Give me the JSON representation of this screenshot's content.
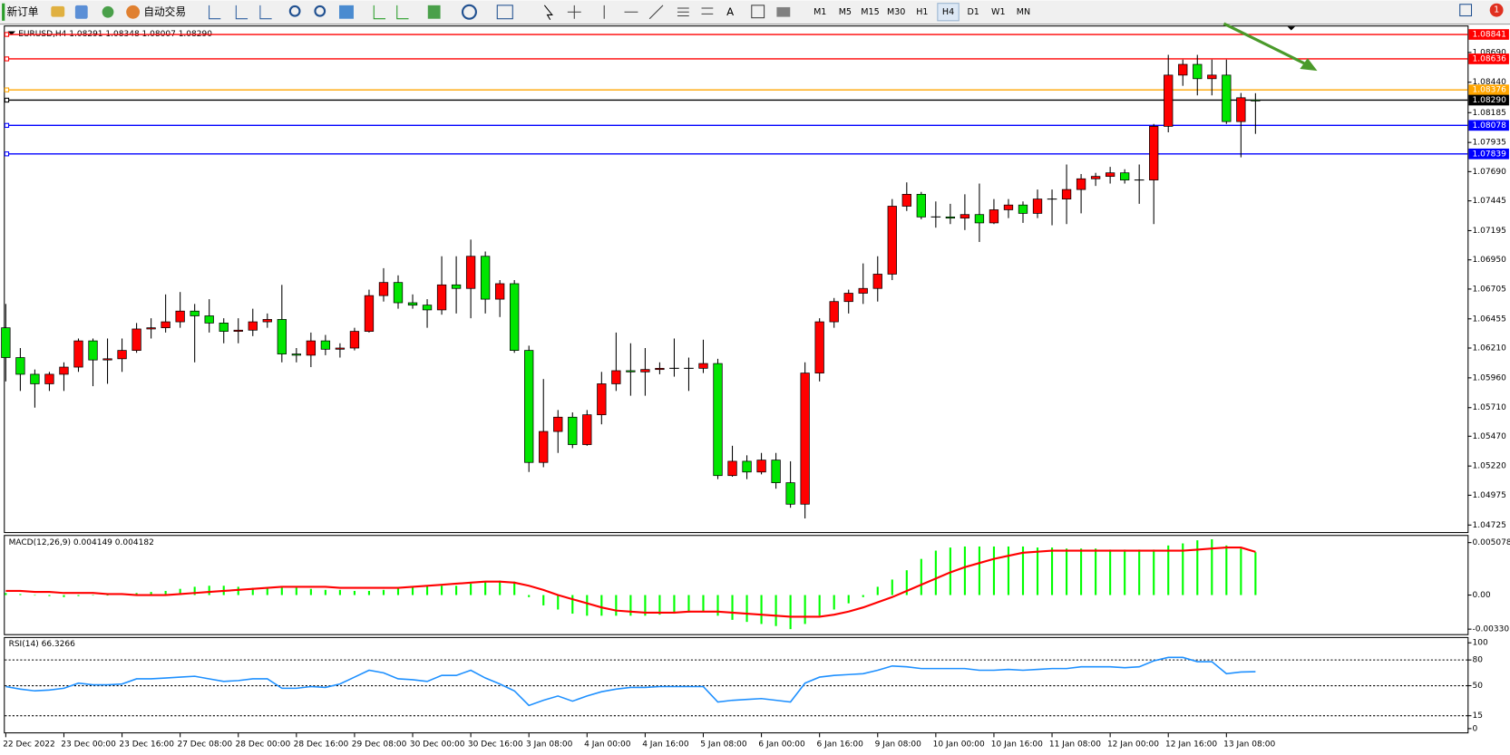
{
  "toolbar": {
    "new_order": "新订单",
    "auto_trading": "自动交易",
    "timeframes": [
      "M1",
      "M5",
      "M15",
      "M30",
      "H1",
      "H4",
      "D1",
      "W1",
      "MN"
    ],
    "notification_count": "1"
  },
  "chart": {
    "header": "EURUSD,H4  1.08291 1.08348 1.08007 1.08290",
    "ylim": [
      1.04666,
      1.08908
    ],
    "yticks": [
      {
        "value": 1.0869,
        "label": "1.08690"
      },
      {
        "value": 1.0844,
        "label": "1.08440"
      },
      1.08185,
      {
        "value": 1.07935,
        "label": "1.07935"
      },
      {
        "value": 1.0769,
        "label": "1.07690"
      },
      1.07445,
      1.07195,
      {
        "value": 1.0695,
        "label": "1.06950"
      },
      1.06705,
      1.06455,
      {
        "value": 1.0621,
        "label": "1.06210"
      },
      {
        "value": 1.0596,
        "label": "1.05960"
      },
      {
        "value": 1.0571,
        "label": "1.05710"
      },
      {
        "value": 1.0547,
        "label": "1.05470"
      },
      {
        "value": 1.0522,
        "label": "1.05220"
      },
      1.04975,
      1.04725
    ],
    "levels": [
      {
        "value": 1.08841,
        "label": "1.08841",
        "color": "#ff0000"
      },
      {
        "value": 1.08636,
        "label": "1.08636",
        "color": "#ff0000"
      },
      {
        "value": 1.08376,
        "label": "1.08376",
        "color": "#ffa500"
      },
      {
        "value": 1.0829,
        "label": "1.08290",
        "color": "#000000"
      },
      {
        "value": 1.08078,
        "label": "1.08078",
        "color": "#0000ff"
      },
      {
        "value": 1.07839,
        "label": "1.07839",
        "color": "#0000ff"
      }
    ],
    "up_color": "#ff0000",
    "down_color": "#00e600",
    "time_labels": [
      "22 Dec 2022",
      "23 Dec 00:00",
      "23 Dec 16:00",
      "27 Dec 08:00",
      "28 Dec 00:00",
      "28 Dec 16:00",
      "29 Dec 08:00",
      "30 Dec 00:00",
      "30 Dec 16:00",
      "3 Jan 08:00",
      "4 Jan 00:00",
      "4 Jan 16:00",
      "5 Jan 08:00",
      "6 Jan 00:00",
      "6 Jan 16:00",
      "9 Jan 08:00",
      "10 Jan 00:00",
      "10 Jan 16:00",
      "11 Jan 08:00",
      "12 Jan 00:00",
      "12 Jan 16:00",
      "13 Jan 08:00"
    ],
    "candles": {
      "open": [
        1.0638,
        1.0613,
        1.0599,
        1.0591,
        1.0599,
        1.0605,
        1.0627,
        1.0611,
        1.0612,
        1.0619,
        1.0637,
        1.0638,
        1.0643,
        1.0652,
        1.0648,
        1.0642,
        1.0635,
        1.0636,
        1.0643,
        1.0645,
        1.0616,
        1.0615,
        1.0627,
        1.062,
        1.0621,
        1.0635,
        1.0665,
        1.0676,
        1.0659,
        1.0657,
        1.0653,
        1.0674,
        1.0671,
        1.0698,
        1.0662,
        1.0675,
        1.0619,
        1.0525,
        1.0551,
        1.0563,
        1.054,
        1.0565,
        1.0591,
        1.0602,
        1.0601,
        1.0603,
        1.0604,
        1.0604,
        1.0604,
        1.0608,
        1.0514,
        1.0526,
        1.0517,
        1.0527,
        1.0508,
        1.049,
        1.06,
        1.0643,
        1.066,
        1.0667,
        1.0671,
        1.0683,
        1.074,
        1.075,
        1.0731,
        1.0731,
        1.073,
        1.0733,
        1.0726,
        1.0737,
        1.0741,
        1.0734,
        1.0746,
        1.0746,
        1.0754,
        1.0763,
        1.0765,
        1.0768,
        1.0762,
        1.0762,
        1.0807,
        1.085,
        1.0859,
        1.0847,
        1.085,
        1.0811,
        1.08291
      ],
      "high": [
        1.0658,
        1.0621,
        1.0603,
        1.0601,
        1.0609,
        1.0629,
        1.0629,
        1.0629,
        1.0629,
        1.0642,
        1.0646,
        1.0666,
        1.0668,
        1.0658,
        1.0662,
        1.0646,
        1.0646,
        1.0654,
        1.065,
        1.0674,
        1.0621,
        1.0634,
        1.0632,
        1.0625,
        1.0638,
        1.067,
        1.0688,
        1.0682,
        1.0666,
        1.0662,
        1.0698,
        1.0698,
        1.0712,
        1.0702,
        1.0678,
        1.0678,
        1.0623,
        1.0595,
        1.0569,
        1.0567,
        1.0569,
        1.0601,
        1.0634,
        1.0625,
        1.0621,
        1.0609,
        1.0629,
        1.0613,
        1.0628,
        1.0612,
        1.0539,
        1.0531,
        1.0533,
        1.0533,
        1.0526,
        1.0609,
        1.0646,
        1.0663,
        1.067,
        1.0692,
        1.0698,
        1.0746,
        1.076,
        1.0752,
        1.0744,
        1.0742,
        1.075,
        1.0759,
        1.0746,
        1.0746,
        1.0744,
        1.0754,
        1.0754,
        1.0775,
        1.0767,
        1.0768,
        1.0773,
        1.0771,
        1.0775,
        1.0809,
        1.0867,
        1.0863,
        1.0867,
        1.0863,
        1.0863,
        1.0835,
        1.08348
      ],
      "low": [
        1.0593,
        1.0585,
        1.0571,
        1.0585,
        1.0585,
        1.0601,
        1.0589,
        1.0591,
        1.0601,
        1.0617,
        1.0629,
        1.0634,
        1.0638,
        1.0609,
        1.0634,
        1.0625,
        1.0625,
        1.0631,
        1.0638,
        1.0609,
        1.0609,
        1.0605,
        1.0615,
        1.0613,
        1.0619,
        1.0634,
        1.066,
        1.0654,
        1.0654,
        1.0638,
        1.0649,
        1.065,
        1.0646,
        1.065,
        1.0647,
        1.0617,
        1.0517,
        1.0521,
        1.0533,
        1.0537,
        1.0539,
        1.0557,
        1.0585,
        1.0581,
        1.0581,
        1.0599,
        1.0597,
        1.0585,
        1.06,
        1.0511,
        1.0513,
        1.0511,
        1.0515,
        1.0503,
        1.0487,
        1.0478,
        1.0593,
        1.0638,
        1.065,
        1.0658,
        1.066,
        1.0678,
        1.0736,
        1.0729,
        1.0722,
        1.0725,
        1.072,
        1.071,
        1.0725,
        1.073,
        1.0726,
        1.073,
        1.0724,
        1.0725,
        1.0734,
        1.0757,
        1.0759,
        1.0759,
        1.0742,
        1.0725,
        1.0802,
        1.0841,
        1.0833,
        1.0833,
        1.0809,
        1.0781,
        1.08007
      ],
      "close": [
        1.0613,
        1.0599,
        1.0591,
        1.0599,
        1.0605,
        1.0627,
        1.0611,
        1.0612,
        1.0619,
        1.0637,
        1.0638,
        1.0643,
        1.0652,
        1.0648,
        1.0642,
        1.0635,
        1.0636,
        1.0643,
        1.0645,
        1.0616,
        1.0615,
        1.0627,
        1.062,
        1.0621,
        1.0635,
        1.0665,
        1.0676,
        1.0659,
        1.0657,
        1.0653,
        1.0674,
        1.0671,
        1.0698,
        1.0662,
        1.0675,
        1.0619,
        1.0525,
        1.0551,
        1.0563,
        1.054,
        1.0565,
        1.0591,
        1.0602,
        1.0601,
        1.0603,
        1.0604,
        1.0604,
        1.0604,
        1.0608,
        1.0514,
        1.0526,
        1.0517,
        1.0527,
        1.0508,
        1.049,
        1.06,
        1.0643,
        1.066,
        1.0667,
        1.0671,
        1.0683,
        1.074,
        1.075,
        1.0731,
        1.0731,
        1.073,
        1.0733,
        1.0726,
        1.0737,
        1.0741,
        1.0734,
        1.0746,
        1.0746,
        1.0754,
        1.0763,
        1.0765,
        1.0768,
        1.0762,
        1.0762,
        1.0807,
        1.085,
        1.0859,
        1.0847,
        1.085,
        1.0811,
        1.0831,
        1.0829
      ]
    }
  },
  "macd": {
    "label": "MACD(12,26,9) 0.004149 0.004182",
    "ylim": [
      -0.003785,
      0.005724
    ],
    "yticks": [
      0.005078,
      {
        "value": 0,
        "label": "0.00"
      },
      -0.003301
    ],
    "histogram_color": "#00ff00",
    "signal_color": "#ff0000",
    "histogram": [
      0.0002,
      0.0001,
      0,
      -0.0001,
      -0.0002,
      -0.0001,
      0,
      0,
      0.0001,
      0.0002,
      0.0003,
      0.0004,
      0.0006,
      0.0008,
      0.0009,
      0.0009,
      0.0008,
      0.0007,
      0.0007,
      0.0007,
      0.0007,
      0.0006,
      0.0005,
      0.0005,
      0.0004,
      0.0004,
      0.0005,
      0.0007,
      0.0008,
      0.0009,
      0.0009,
      0.0009,
      0.0011,
      0.0013,
      0.0014,
      0.0013,
      -0.0002,
      -0.001,
      -0.0014,
      -0.0018,
      -0.002,
      -0.002,
      -0.002,
      -0.002,
      -0.002,
      -0.0019,
      -0.0018,
      -0.0017,
      -0.0016,
      -0.002,
      -0.0024,
      -0.0026,
      -0.0028,
      -0.003,
      -0.0033,
      -0.0028,
      -0.002,
      -0.0014,
      -0.0008,
      -0.0002,
      0.0008,
      0.0015,
      0.0024,
      0.0035,
      0.0043,
      0.0046,
      0.0047,
      0.0047,
      0.0047,
      0.0047,
      0.0047,
      0.0046,
      0.0046,
      0.0045,
      0.0045,
      0.0045,
      0.0044,
      0.0044,
      0.0044,
      0.0044,
      0.0048,
      0.005,
      0.0053,
      0.0054,
      0.0048,
      0.0045,
      0.004149
    ],
    "signal": [
      0.0004,
      0.0004,
      0.0003,
      0.0003,
      0.0002,
      0.0002,
      0.0002,
      0.0001,
      0.0001,
      0,
      0,
      0,
      0.0001,
      0.0002,
      0.0003,
      0.0004,
      0.0005,
      0.0006,
      0.0007,
      0.0008,
      0.0008,
      0.0008,
      0.0008,
      0.0007,
      0.0007,
      0.0007,
      0.0007,
      0.0007,
      0.0008,
      0.0009,
      0.001,
      0.0011,
      0.0012,
      0.0013,
      0.0013,
      0.0012,
      0.0009,
      0.0005,
      0,
      -0.0004,
      -0.0008,
      -0.0012,
      -0.0015,
      -0.0016,
      -0.0017,
      -0.0017,
      -0.0017,
      -0.0016,
      -0.0016,
      -0.0016,
      -0.0017,
      -0.0018,
      -0.0019,
      -0.002,
      -0.0021,
      -0.0021,
      -0.0021,
      -0.0019,
      -0.0016,
      -0.0012,
      -0.0007,
      -0.0002,
      0.0004,
      0.001,
      0.0016,
      0.0022,
      0.0027,
      0.0031,
      0.0035,
      0.0038,
      0.0041,
      0.0042,
      0.0043,
      0.0043,
      0.0043,
      0.0043,
      0.0043,
      0.0043,
      0.0043,
      0.0043,
      0.0043,
      0.0043,
      0.0044,
      0.0045,
      0.0046,
      0.0046,
      0.004182
    ]
  },
  "rsi": {
    "label": "RSI(14) 66.3266",
    "ylim": [
      -4.4,
      105.6
    ],
    "yticks": [
      100,
      80,
      50,
      15,
      0
    ],
    "levels": [
      80,
      50,
      15
    ],
    "color": "#1e90ff",
    "values": [
      49,
      46,
      44,
      45,
      47,
      53,
      51,
      51,
      52,
      58,
      58,
      59,
      60,
      61,
      58,
      55,
      56,
      58,
      58,
      47,
      47,
      49,
      48,
      52,
      60,
      68,
      65,
      58,
      57,
      55,
      62,
      62,
      68,
      59,
      52,
      44,
      27,
      33,
      38,
      32,
      38,
      43,
      46,
      48,
      48,
      49,
      49,
      49,
      49,
      31,
      33,
      34,
      35,
      33,
      31,
      53,
      60,
      62,
      63,
      64,
      68,
      73,
      72,
      70,
      70,
      70,
      70,
      68,
      68,
      69,
      68,
      69,
      70,
      70,
      72,
      72,
      72,
      71,
      72,
      79,
      83,
      83,
      78,
      78,
      64,
      66,
      66.3266
    ]
  }
}
